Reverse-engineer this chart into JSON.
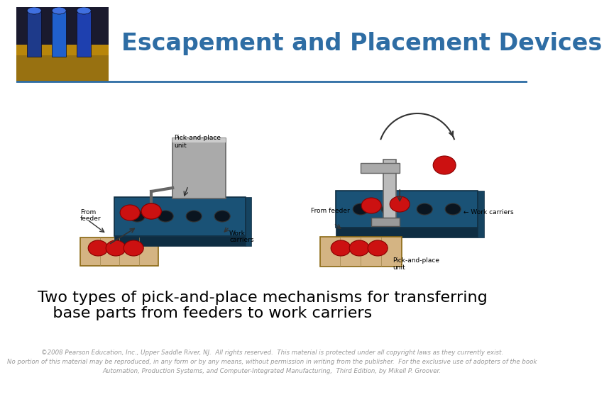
{
  "title": "Escapement and Placement Devices",
  "title_color": "#2E6DA4",
  "title_fontsize": 24,
  "background_color": "#FFFFFF",
  "header_line_color": "#2E6DA4",
  "body_text_line1": "Two types of pick-and-place mechanisms for transferring",
  "body_text_line2": "   base parts from feeders to work carriers",
  "body_fontsize": 16,
  "body_color": "#000000",
  "footer_text": "©2008 Pearson Education, Inc., Upper Saddle River, NJ.  All rights reserved.  This material is protected under all copyright laws as they currently exist.\nNo portion of this material may be reproduced, in any form or by any means, without permission in writing from the publisher.  For the exclusive use of adopters of the book\nAutomation, Production Systems, and Computer-Integrated Manufacturing,  Third Edition, by Mikell P. Groover.",
  "footer_fontsize": 6.2,
  "footer_color": "#999999",
  "header_img_colors": {
    "top": "#1a1a2e",
    "bottom": "#DAA520",
    "cylinders": [
      "#1e3a8a",
      "#2563eb",
      "#1e40af"
    ]
  }
}
